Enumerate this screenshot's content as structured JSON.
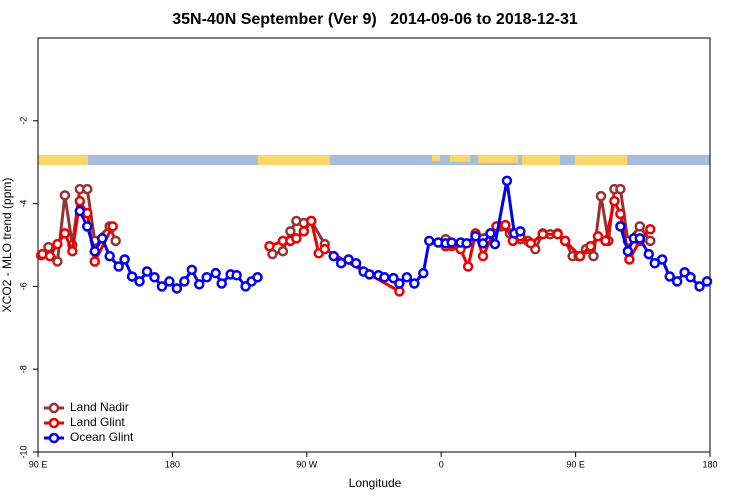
{
  "chart_data": {
    "type": "line",
    "title": "35N-40N September (Ver 9)   2014-09-06 to 2018-12-31",
    "xlabel": "Longitude",
    "ylabel": "XCO2 - MLO trend (ppm)",
    "xlim": [
      90,
      540
    ],
    "ylim": [
      -10,
      0
    ],
    "xticks": [
      {
        "value": 90,
        "label": "90 E"
      },
      180,
      {
        "value": 270,
        "label": "90 W"
      },
      {
        "value": 360,
        "label": "0"
      },
      {
        "value": 450,
        "label": "90 E"
      },
      {
        "value": 540,
        "label": "180"
      }
    ],
    "yticks": [
      -2,
      -4,
      -6,
      -8,
      -10
    ],
    "legend": "bottom-left",
    "series": [
      {
        "name": "Land Nadir",
        "color": "#993333",
        "x": [
          92,
          97,
          103,
          108,
          113,
          118,
          123,
          128,
          138,
          142,
          242,
          247,
          254,
          259,
          263,
          268,
          273,
          282,
          358,
          363,
          367,
          373,
          383,
          393,
          400,
          406,
          413,
          418,
          423,
          428,
          433,
          438,
          443,
          448,
          452,
          457,
          462,
          467,
          472,
          476,
          480,
          485,
          493,
          500
        ],
        "values": [
          -5.25,
          -5.05,
          -5.4,
          -3.8,
          -5.0,
          -3.65,
          -3.65,
          -4.9,
          -4.55,
          -4.9,
          null,
          -5.22,
          -5.15,
          -4.67,
          -4.42,
          -4.47,
          -4.42,
          -4.98,
          null,
          -4.86,
          -5.03,
          -5.03,
          -4.79,
          -4.72,
          -4.55,
          -4.72,
          -4.86,
          -4.9,
          -5.1,
          -4.72,
          -4.74,
          -4.72,
          -4.9,
          -5.27,
          -5.27,
          -5.1,
          -5.27,
          -3.82,
          -4.9,
          -3.65,
          -3.65,
          -4.9,
          -4.55,
          -4.9
        ]
      },
      {
        "name": "Land Glint",
        "color": "#ee0000",
        "x": [
          93,
          98,
          103,
          108,
          113,
          118,
          123,
          128,
          140,
          239,
          245,
          254,
          259,
          263,
          268,
          273,
          278,
          282,
          332,
          358,
          363,
          373,
          378,
          383,
          388,
          397,
          403,
          408,
          413,
          420,
          428,
          438,
          443,
          453,
          460,
          465,
          470,
          476,
          480,
          486,
          493,
          500
        ],
        "values": [
          -5.22,
          -5.27,
          -4.98,
          -4.72,
          -5.15,
          -3.94,
          -4.23,
          -5.4,
          -4.55,
          null,
          -5.03,
          -4.9,
          -4.9,
          -4.84,
          -4.67,
          -4.42,
          -5.2,
          -5.1,
          -6.12,
          null,
          -5.03,
          -5.1,
          -5.52,
          -4.72,
          -5.27,
          -4.55,
          -4.52,
          -4.9,
          -4.79,
          -4.96,
          -4.74,
          -4.74,
          -4.9,
          -5.27,
          -5.03,
          -4.79,
          -4.9,
          -3.94,
          -4.25,
          -5.35,
          -4.9,
          -4.62
        ]
      },
      {
        "name": "Ocean Glint",
        "color": "#0000ee",
        "x": [
          118,
          123,
          128,
          133,
          138,
          144,
          148,
          153,
          158,
          163,
          168,
          173,
          178,
          183,
          188,
          193,
          198,
          203,
          209,
          213,
          219,
          223,
          229,
          233,
          237,
          286,
          288,
          293,
          298,
          303,
          308,
          312,
          318,
          322,
          328,
          332,
          337,
          342,
          348,
          352,
          358,
          363,
          367,
          373,
          377,
          383,
          388,
          393,
          396,
          404,
          409,
          413,
          476,
          480,
          485,
          489,
          493,
          499,
          503,
          508,
          513,
          518,
          523,
          527,
          533,
          538
        ],
        "values": [
          -4.18,
          -4.55,
          -5.15,
          -4.84,
          -5.27,
          -5.52,
          -5.35,
          -5.76,
          -5.88,
          -5.64,
          -5.78,
          -6.0,
          -5.88,
          -6.05,
          -5.88,
          -5.6,
          -5.95,
          -5.78,
          -5.68,
          -5.93,
          -5.71,
          -5.73,
          -6.0,
          -5.88,
          -5.78,
          null,
          -5.27,
          -5.44,
          -5.35,
          -5.44,
          -5.64,
          -5.71,
          -5.73,
          -5.78,
          -5.8,
          -5.93,
          -5.78,
          -5.93,
          -5.68,
          -4.9,
          -4.94,
          -4.96,
          -4.94,
          -4.94,
          -4.96,
          -4.79,
          -4.96,
          -4.72,
          -4.98,
          -3.45,
          -4.72,
          -4.67,
          null,
          -4.55,
          -5.15,
          -4.84,
          -4.84,
          -5.22,
          -5.44,
          -5.35,
          -5.76,
          -5.88,
          -5.66,
          -5.78,
          -6.0,
          -5.88
        ]
      }
    ]
  }
}
